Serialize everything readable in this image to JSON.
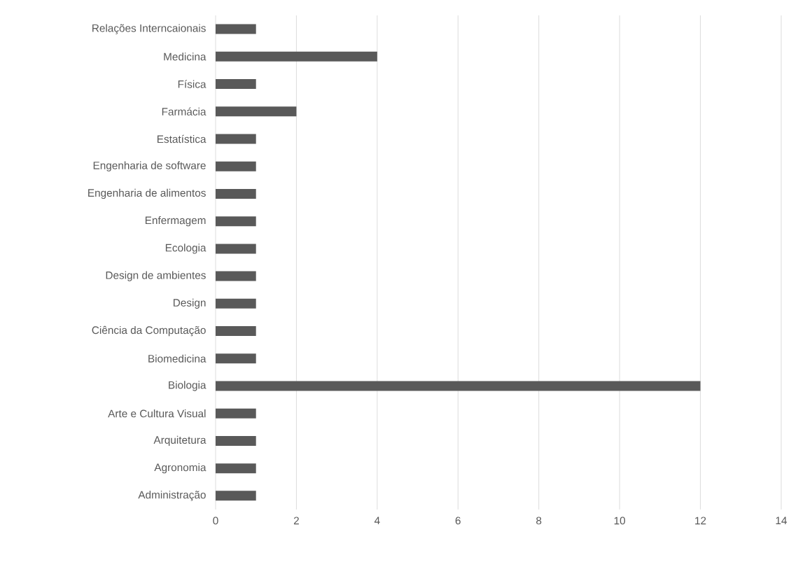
{
  "chart_data": {
    "type": "bar",
    "orientation": "horizontal",
    "categories": [
      "Relações Interncaionais",
      "Medicina",
      "Física",
      "Farmácia",
      "Estatística",
      "Engenharia de software",
      "Engenharia de alimentos",
      "Enfermagem",
      "Ecologia",
      "Design de ambientes",
      "Design",
      "Ciência da Computação",
      "Biomedicina",
      "Biologia",
      "Arte e Cultura Visual",
      "Arquitetura",
      "Agronomia",
      "Administração"
    ],
    "values": [
      1,
      4,
      1,
      2,
      1,
      1,
      1,
      1,
      1,
      1,
      1,
      1,
      1,
      12,
      1,
      1,
      1,
      1
    ],
    "color": "#595959",
    "xlim": [
      0,
      14
    ],
    "xticks": [
      0,
      2,
      4,
      6,
      8,
      10,
      12,
      14
    ],
    "grid": "x"
  }
}
